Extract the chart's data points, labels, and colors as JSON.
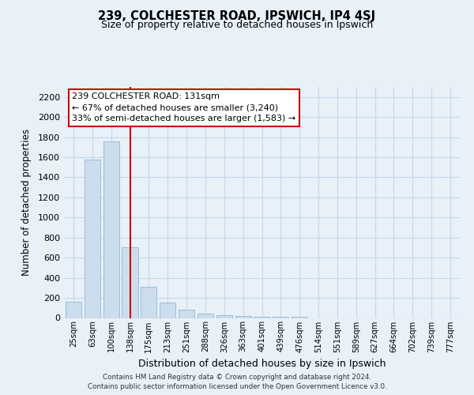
{
  "title1": "239, COLCHESTER ROAD, IPSWICH, IP4 4SJ",
  "title2": "Size of property relative to detached houses in Ipswich",
  "xlabel": "Distribution of detached houses by size in Ipswich",
  "ylabel": "Number of detached properties",
  "bar_labels": [
    "25sqm",
    "63sqm",
    "100sqm",
    "138sqm",
    "175sqm",
    "213sqm",
    "251sqm",
    "288sqm",
    "326sqm",
    "363sqm",
    "401sqm",
    "439sqm",
    "476sqm",
    "514sqm",
    "551sqm",
    "589sqm",
    "627sqm",
    "664sqm",
    "702sqm",
    "739sqm",
    "777sqm"
  ],
  "bar_values": [
    160,
    1580,
    1760,
    700,
    310,
    155,
    80,
    45,
    30,
    18,
    12,
    10,
    10,
    0,
    0,
    0,
    0,
    0,
    0,
    0,
    0
  ],
  "bar_color": "#ccdded",
  "bar_edge_color": "#9bbdd4",
  "grid_color": "#c5d8ea",
  "background_color": "#e8f0f8",
  "vline_x": 3,
  "vline_color": "#cc0000",
  "annotation_title": "239 COLCHESTER ROAD: 131sqm",
  "annotation_line1": "← 67% of detached houses are smaller (3,240)",
  "annotation_line2": "33% of semi-detached houses are larger (1,583) →",
  "annotation_box_facecolor": "#ffffff",
  "annotation_box_edgecolor": "#cc0000",
  "ylim": [
    0,
    2300
  ],
  "yticks": [
    0,
    200,
    400,
    600,
    800,
    1000,
    1200,
    1400,
    1600,
    1800,
    2000,
    2200
  ],
  "footer1": "Contains HM Land Registry data © Crown copyright and database right 2024.",
  "footer2": "Contains public sector information licensed under the Open Government Licence v3.0."
}
